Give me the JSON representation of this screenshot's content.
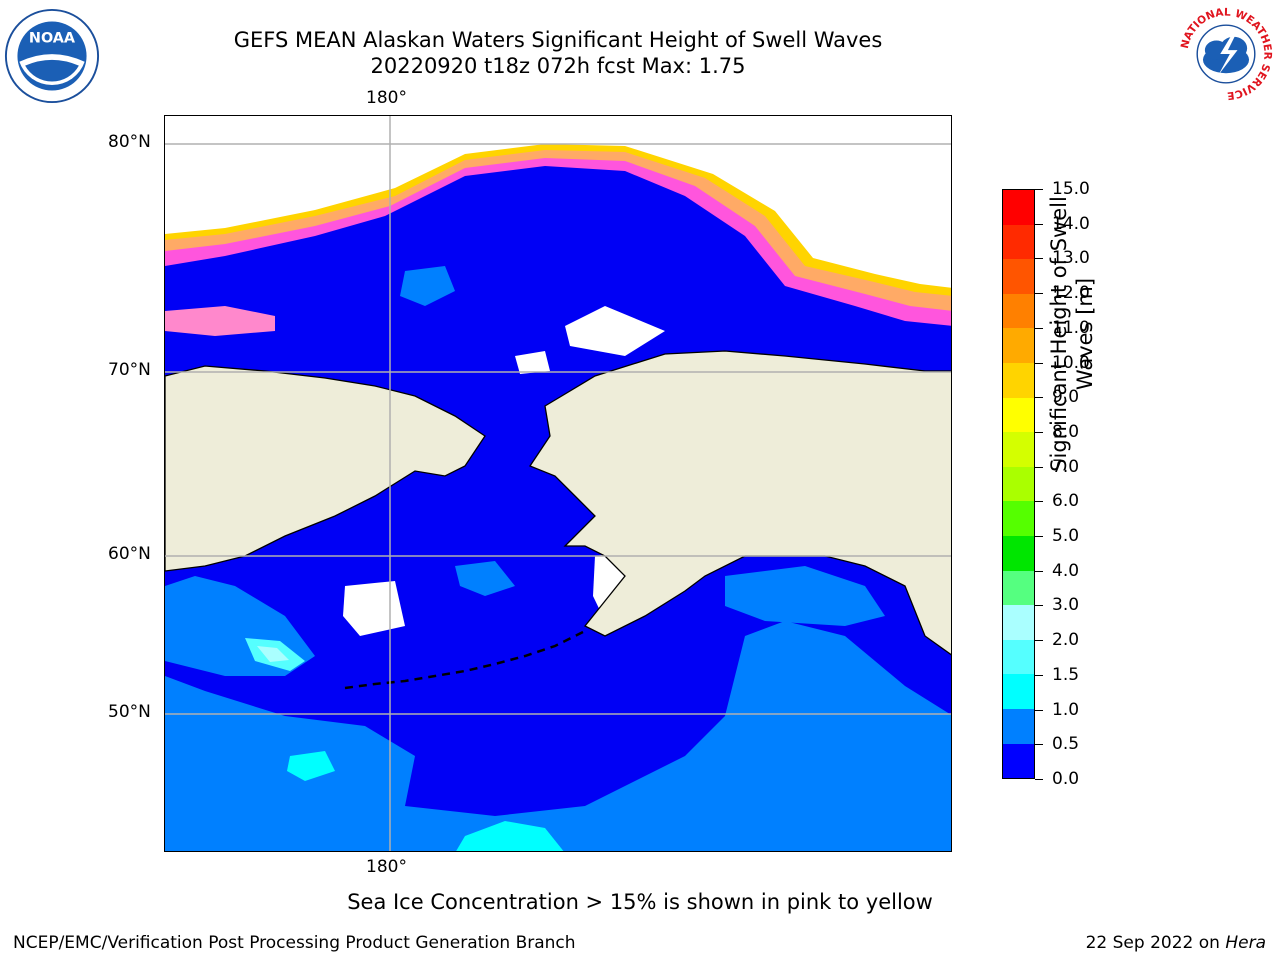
{
  "title": {
    "line1": "GEFS MEAN Alaskan Waters Significant Height of Swell Waves",
    "line2": "20220920 t18z 072h fcst    Max: 1.75"
  },
  "map": {
    "lon_label_top": "180°",
    "lon_label_bottom": "180°",
    "lat_labels": [
      "80°N",
      "70°N",
      "60°N",
      "50°N"
    ]
  },
  "colorbar": {
    "label_line1": "Significant Height of Swell",
    "label_line2": "Waves [m]",
    "ticks": [
      "15.0",
      "14.0",
      "13.0",
      "12.0",
      "11.0",
      "10.0",
      "9.0",
      "8.0",
      "7.0",
      "6.0",
      "5.0",
      "4.0",
      "3.0",
      "2.0",
      "1.5",
      "1.0",
      "0.5",
      "0.0"
    ],
    "colors": [
      "#ff0000",
      "#ff2a00",
      "#ff5500",
      "#ff8000",
      "#ffaa00",
      "#ffd400",
      "#ffff00",
      "#d4ff00",
      "#aaff00",
      "#55ff00",
      "#00e600",
      "#55ff80",
      "#aaffff",
      "#55ffff",
      "#00ffff",
      "#0080ff",
      "#0000ff"
    ]
  },
  "note": "Sea Ice Concentration > 15% is shown in pink to yellow",
  "footer": {
    "left": "NCEP/EMC/Verification Post Processing Product Generation Branch",
    "right_date": "22 Sep 2022 on ",
    "right_host": "Hera"
  },
  "logos": {
    "left": "NOAA",
    "right_ring": "NATIONAL WEATHER SERVICE"
  }
}
